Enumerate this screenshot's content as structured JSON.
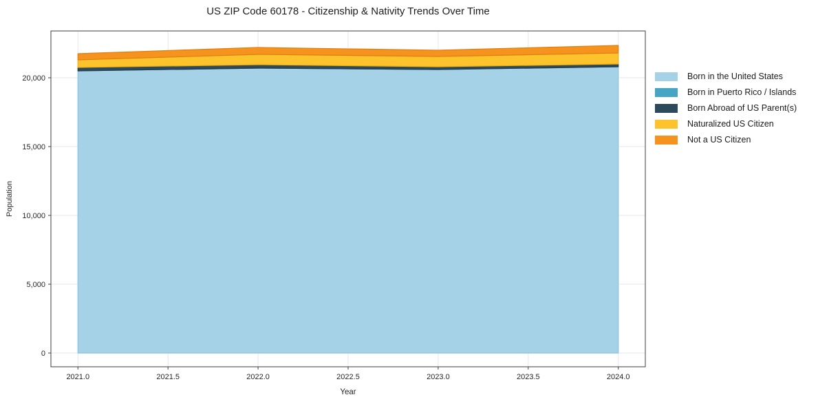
{
  "chart_data": {
    "type": "area",
    "stacked": true,
    "title": "US ZIP Code 60178 - Citizenship & Nativity Trends Over Time",
    "xlabel": "Year",
    "ylabel": "Population",
    "x": [
      2021.0,
      2022.0,
      2023.0,
      2024.0
    ],
    "series": [
      {
        "name": "Born in the United States",
        "color": "#a5d2e7",
        "edge_color": "#8cc3dc",
        "values": [
          20500,
          20700,
          20600,
          20800
        ]
      },
      {
        "name": "Born in Puerto Rico / Islands",
        "color": "#46a5c4",
        "edge_color": "#3a90ac",
        "values": [
          0,
          0,
          0,
          0
        ]
      },
      {
        "name": "Born Abroad of US Parent(s)",
        "color": "#2d4a5c",
        "edge_color": "#233a49",
        "values": [
          250,
          250,
          200,
          200
        ]
      },
      {
        "name": "Naturalized US Citizen",
        "color": "#fcc32d",
        "edge_color": "#eead10",
        "values": [
          550,
          750,
          750,
          800
        ]
      },
      {
        "name": "Not a US Citizen",
        "color": "#f6921e",
        "edge_color": "#e07f10",
        "values": [
          450,
          500,
          450,
          550
        ]
      }
    ],
    "totals": [
      21750,
      22200,
      22000,
      22350
    ],
    "xlim": [
      2020.85,
      2024.15
    ],
    "ylim": [
      -1000,
      23400
    ],
    "xticks": {
      "values": [
        2021.0,
        2021.5,
        2022.0,
        2022.5,
        2023.0,
        2023.5,
        2024.0
      ],
      "labels": [
        "2021.0",
        "2021.5",
        "2022.0",
        "2022.5",
        "2023.0",
        "2023.5",
        "2024.0"
      ]
    },
    "yticks": {
      "values": [
        0,
        5000,
        10000,
        15000,
        20000
      ],
      "labels": [
        "0",
        "5,000",
        "10,000",
        "15,000",
        "20,000"
      ]
    },
    "grid": true,
    "legend_position": "right-outside",
    "colors": {
      "grid": "#e4e7ea",
      "spine": "#3c3c3c",
      "tick_label": "#262626",
      "background": "#ffffff"
    }
  }
}
